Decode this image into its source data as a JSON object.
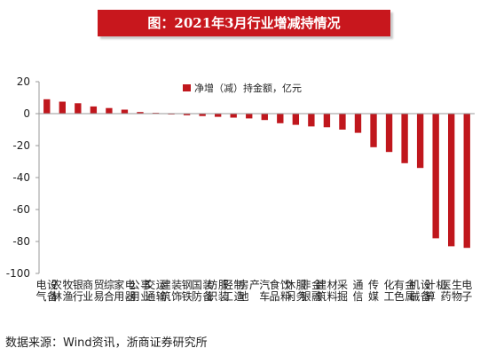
{
  "title": "图：2021年3月行业增减持情况",
  "source": "数据来源：Wind资讯，浙商证券研究所",
  "chart_data": {
    "type": "bar",
    "legend": "净增（减）持金额，亿元",
    "legend_position": "top",
    "grid": false,
    "ylim": [
      -100,
      20
    ],
    "yticks": [
      20,
      0,
      -20,
      -40,
      -60,
      -80,
      -100
    ],
    "bar_color": "#c0171d",
    "categories": [
      "电气设备",
      "农林牧渔",
      "银行",
      "商业贸易",
      "综合",
      "家用电器",
      "公用事业",
      "交通运输",
      "建筑装饰",
      "钢铁",
      "国防装备",
      "纺织服装",
      "轻工制造",
      "房地产",
      "汽车",
      "食品饮料",
      "休闲服务",
      "非银金融",
      "建筑材料",
      "采掘",
      "通信",
      "传媒",
      "化工",
      "有色金属",
      "机械设备",
      "计算机",
      "医药生物",
      "电子"
    ],
    "values": [
      9,
      7.5,
      6.5,
      4.5,
      3.5,
      2.5,
      1,
      0.5,
      -0.5,
      -1,
      -1.5,
      -2,
      -2.5,
      -3,
      -4,
      -6,
      -7,
      -8,
      -8.5,
      -10,
      -12,
      -21,
      -24,
      -31,
      -34,
      -78,
      -83,
      -84
    ]
  }
}
